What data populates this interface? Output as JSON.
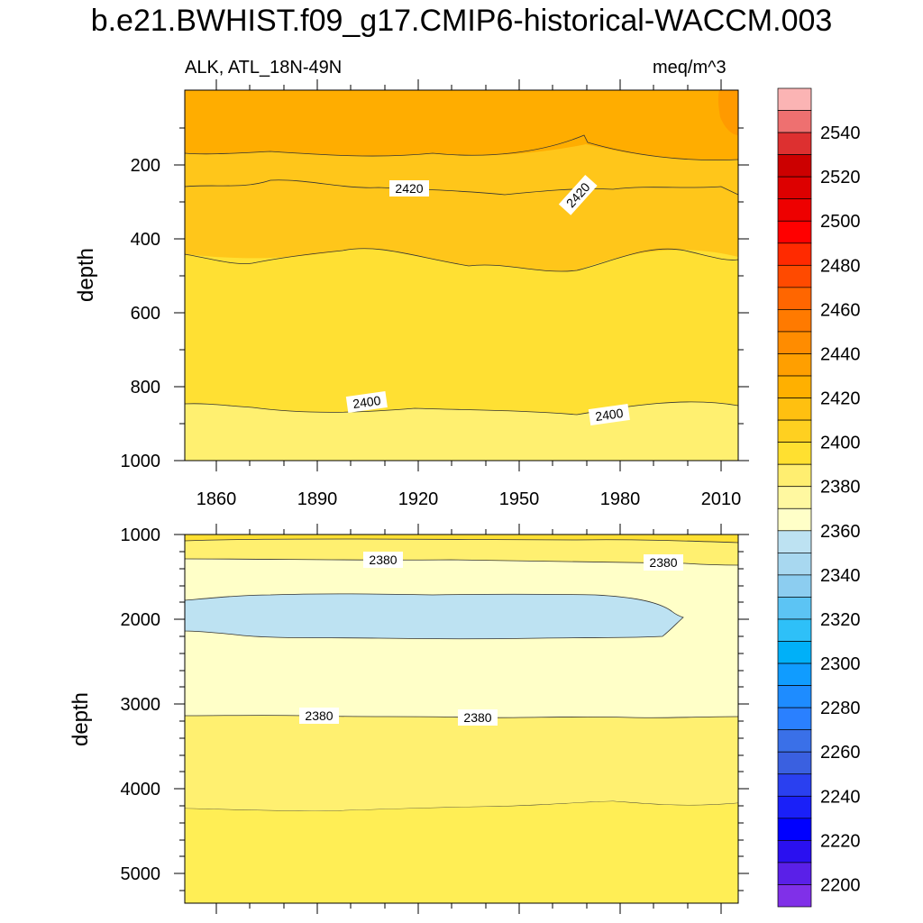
{
  "title": "b.e21.BWHIST.f09_g17.CMIP6-historical-WACCM.003",
  "subtitle_left": "ALK, ATL_18N-49N",
  "subtitle_right": "meq/m^3",
  "chart_data": [
    {
      "type": "heatmap",
      "panel": "upper",
      "xlabel": "",
      "ylabel": "depth",
      "xlim": [
        1850,
        2014
      ],
      "ylim": [
        1000,
        5
      ],
      "x_ticks": [
        "1860",
        "1890",
        "1920",
        "1950",
        "1980",
        "2010"
      ],
      "y_ticks": [
        "200",
        "400",
        "600",
        "800",
        "1000"
      ],
      "contours": [
        {
          "level": 2430,
          "depth_approx": 170
        },
        {
          "level": 2420,
          "depth_approx": 270
        },
        {
          "level": 2410,
          "depth_approx": 460
        },
        {
          "level": 2400,
          "depth_approx": 860
        }
      ],
      "contour_labels": [
        "2420",
        "2420",
        "2400",
        "2400"
      ]
    },
    {
      "type": "heatmap",
      "panel": "lower",
      "xlabel": "",
      "ylabel": "depth",
      "xlim": [
        1850,
        2014
      ],
      "ylim": [
        5400,
        1000
      ],
      "y_ticks": [
        "1000",
        "2000",
        "3000",
        "4000",
        "5000"
      ],
      "contours": [
        {
          "level": 2390,
          "depth_approx": 1050
        },
        {
          "level": 2380,
          "depth_approx": 1300
        },
        {
          "level": 2370,
          "depth_range": [
            1750,
            2250
          ],
          "x_extent": [
            1850,
            1996
          ]
        },
        {
          "level": 2380,
          "depth_approx": 3150
        },
        {
          "level": 2390,
          "depth_approx": 4250
        }
      ],
      "contour_labels": [
        "2380",
        "2380",
        "2380",
        "2380"
      ]
    }
  ],
  "colorbar": {
    "labels": [
      "2540",
      "2520",
      "2500",
      "2480",
      "2460",
      "2440",
      "2420",
      "2400",
      "2380",
      "2360",
      "2340",
      "2320",
      "2300",
      "2280",
      "2260",
      "2240",
      "2220",
      "2200"
    ],
    "colors_top_to_bottom": [
      "#fbb4b4",
      "#ee7070",
      "#dd3030",
      "#cc0000",
      "#dd0000",
      "#ee0000",
      "#ff0000",
      "#ff2a00",
      "#ff4a00",
      "#ff6600",
      "#ff7a00",
      "#ff8c00",
      "#ff9f00",
      "#ffb000",
      "#ffc010",
      "#ffd020",
      "#ffe030",
      "#ffee70",
      "#fff8a0",
      "#ffffc8",
      "#bde2f2",
      "#a8d8f0",
      "#8ccdf0",
      "#5cc4f4",
      "#2ec0f8",
      "#00b0f8",
      "#109cff",
      "#1e8cff",
      "#2a80ff",
      "#3a70e8",
      "#3a60e0",
      "#2a40f0",
      "#1a20f8",
      "#0000ff",
      "#2a10f0",
      "#5a20e8",
      "#8030e8"
    ]
  }
}
